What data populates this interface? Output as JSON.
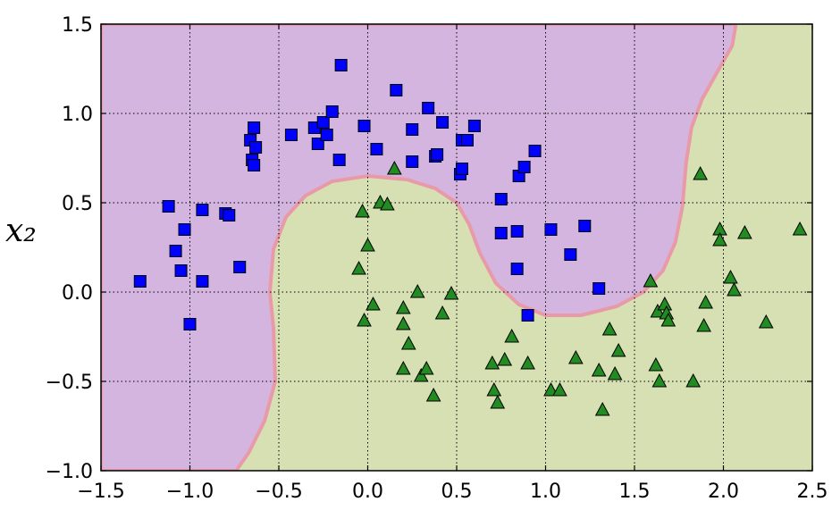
{
  "chart_data": {
    "type": "scatter",
    "xlim": [
      -1.5,
      2.5
    ],
    "ylim": [
      -1.0,
      1.5
    ],
    "x_ticks": [
      -1.5,
      -1.0,
      -0.5,
      0.0,
      0.5,
      1.0,
      1.5,
      2.0,
      2.5
    ],
    "y_ticks": [
      -1.0,
      -0.5,
      0.0,
      0.5,
      1.0,
      1.5
    ],
    "x_tick_labels": [
      "−1.5",
      "−1.0",
      "−0.5",
      "0.0",
      "0.5",
      "1.0",
      "1.5",
      "2.0",
      "2.5"
    ],
    "y_tick_labels": [
      "−1.0",
      "−0.5",
      "0.0",
      "0.5",
      "1.0",
      "1.5"
    ],
    "ylabel": "x₂",
    "xlabel": "",
    "title": "",
    "grid": true,
    "grid_style": "dotted",
    "decision_regions": {
      "class0_color": "#d4b5e0",
      "class1_color": "#d7e0b3",
      "boundary_color": "#e89aa8"
    },
    "series": [
      {
        "marker": "square",
        "color": "#0000ff",
        "points": [
          [
            -1.28,
            0.06
          ],
          [
            -1.12,
            0.48
          ],
          [
            -1.08,
            0.23
          ],
          [
            -1.05,
            0.12
          ],
          [
            -1.03,
            0.35
          ],
          [
            -1.0,
            -0.18
          ],
          [
            -0.93,
            0.46
          ],
          [
            -0.93,
            0.06
          ],
          [
            -0.8,
            0.44
          ],
          [
            -0.78,
            0.43
          ],
          [
            -0.72,
            0.14
          ],
          [
            -0.66,
            0.85
          ],
          [
            -0.64,
            0.92
          ],
          [
            -0.63,
            0.81
          ],
          [
            -0.65,
            0.74
          ],
          [
            -0.64,
            0.71
          ],
          [
            -0.43,
            0.88
          ],
          [
            -0.3,
            0.92
          ],
          [
            -0.28,
            0.83
          ],
          [
            -0.25,
            0.95
          ],
          [
            -0.23,
            0.88
          ],
          [
            -0.2,
            1.01
          ],
          [
            -0.16,
            0.74
          ],
          [
            -0.15,
            1.27
          ],
          [
            -0.02,
            0.93
          ],
          [
            0.05,
            0.8
          ],
          [
            0.16,
            1.13
          ],
          [
            0.25,
            0.73
          ],
          [
            0.25,
            0.91
          ],
          [
            0.34,
            1.03
          ],
          [
            0.38,
            0.76
          ],
          [
            0.39,
            0.77
          ],
          [
            0.42,
            0.95
          ],
          [
            0.52,
            0.66
          ],
          [
            0.53,
            0.69
          ],
          [
            0.53,
            0.85
          ],
          [
            0.56,
            0.85
          ],
          [
            0.6,
            0.93
          ],
          [
            0.75,
            0.52
          ],
          [
            0.75,
            0.33
          ],
          [
            0.84,
            0.13
          ],
          [
            0.84,
            0.34
          ],
          [
            0.85,
            0.65
          ],
          [
            0.88,
            0.7
          ],
          [
            0.9,
            -0.13
          ],
          [
            0.94,
            0.79
          ],
          [
            1.03,
            0.35
          ],
          [
            1.14,
            0.21
          ],
          [
            1.22,
            0.37
          ],
          [
            1.3,
            0.02
          ]
        ]
      },
      {
        "marker": "triangle",
        "color": "#228b22",
        "points": [
          [
            -0.05,
            0.13
          ],
          [
            -0.03,
            0.45
          ],
          [
            -0.02,
            -0.16
          ],
          [
            0.0,
            0.26
          ],
          [
            0.03,
            -0.07
          ],
          [
            0.07,
            0.5
          ],
          [
            0.11,
            0.49
          ],
          [
            0.15,
            0.69
          ],
          [
            0.2,
            -0.43
          ],
          [
            0.2,
            -0.09
          ],
          [
            0.2,
            -0.18
          ],
          [
            0.23,
            -0.29
          ],
          [
            0.28,
            0.0
          ],
          [
            0.3,
            -0.47
          ],
          [
            0.33,
            -0.43
          ],
          [
            0.37,
            -0.58
          ],
          [
            0.42,
            -0.12
          ],
          [
            0.47,
            -0.01
          ],
          [
            0.7,
            -0.4
          ],
          [
            0.71,
            -0.55
          ],
          [
            0.73,
            -0.62
          ],
          [
            0.77,
            -0.38
          ],
          [
            0.81,
            -0.25
          ],
          [
            0.9,
            -0.4
          ],
          [
            1.03,
            -0.55
          ],
          [
            1.08,
            -0.55
          ],
          [
            1.17,
            -0.37
          ],
          [
            1.3,
            -0.44
          ],
          [
            1.32,
            -0.66
          ],
          [
            1.36,
            -0.21
          ],
          [
            1.39,
            -0.46
          ],
          [
            1.41,
            -0.33
          ],
          [
            1.59,
            0.06
          ],
          [
            1.62,
            -0.41
          ],
          [
            1.63,
            -0.11
          ],
          [
            1.64,
            -0.5
          ],
          [
            1.67,
            -0.07
          ],
          [
            1.68,
            -0.12
          ],
          [
            1.69,
            -0.16
          ],
          [
            1.83,
            -0.5
          ],
          [
            1.87,
            0.66
          ],
          [
            1.89,
            -0.19
          ],
          [
            1.9,
            -0.06
          ],
          [
            1.98,
            0.35
          ],
          [
            1.98,
            0.29
          ],
          [
            2.04,
            0.08
          ],
          [
            2.06,
            0.01
          ],
          [
            2.12,
            0.33
          ],
          [
            2.24,
            -0.17
          ],
          [
            2.43,
            0.35
          ]
        ]
      }
    ]
  }
}
